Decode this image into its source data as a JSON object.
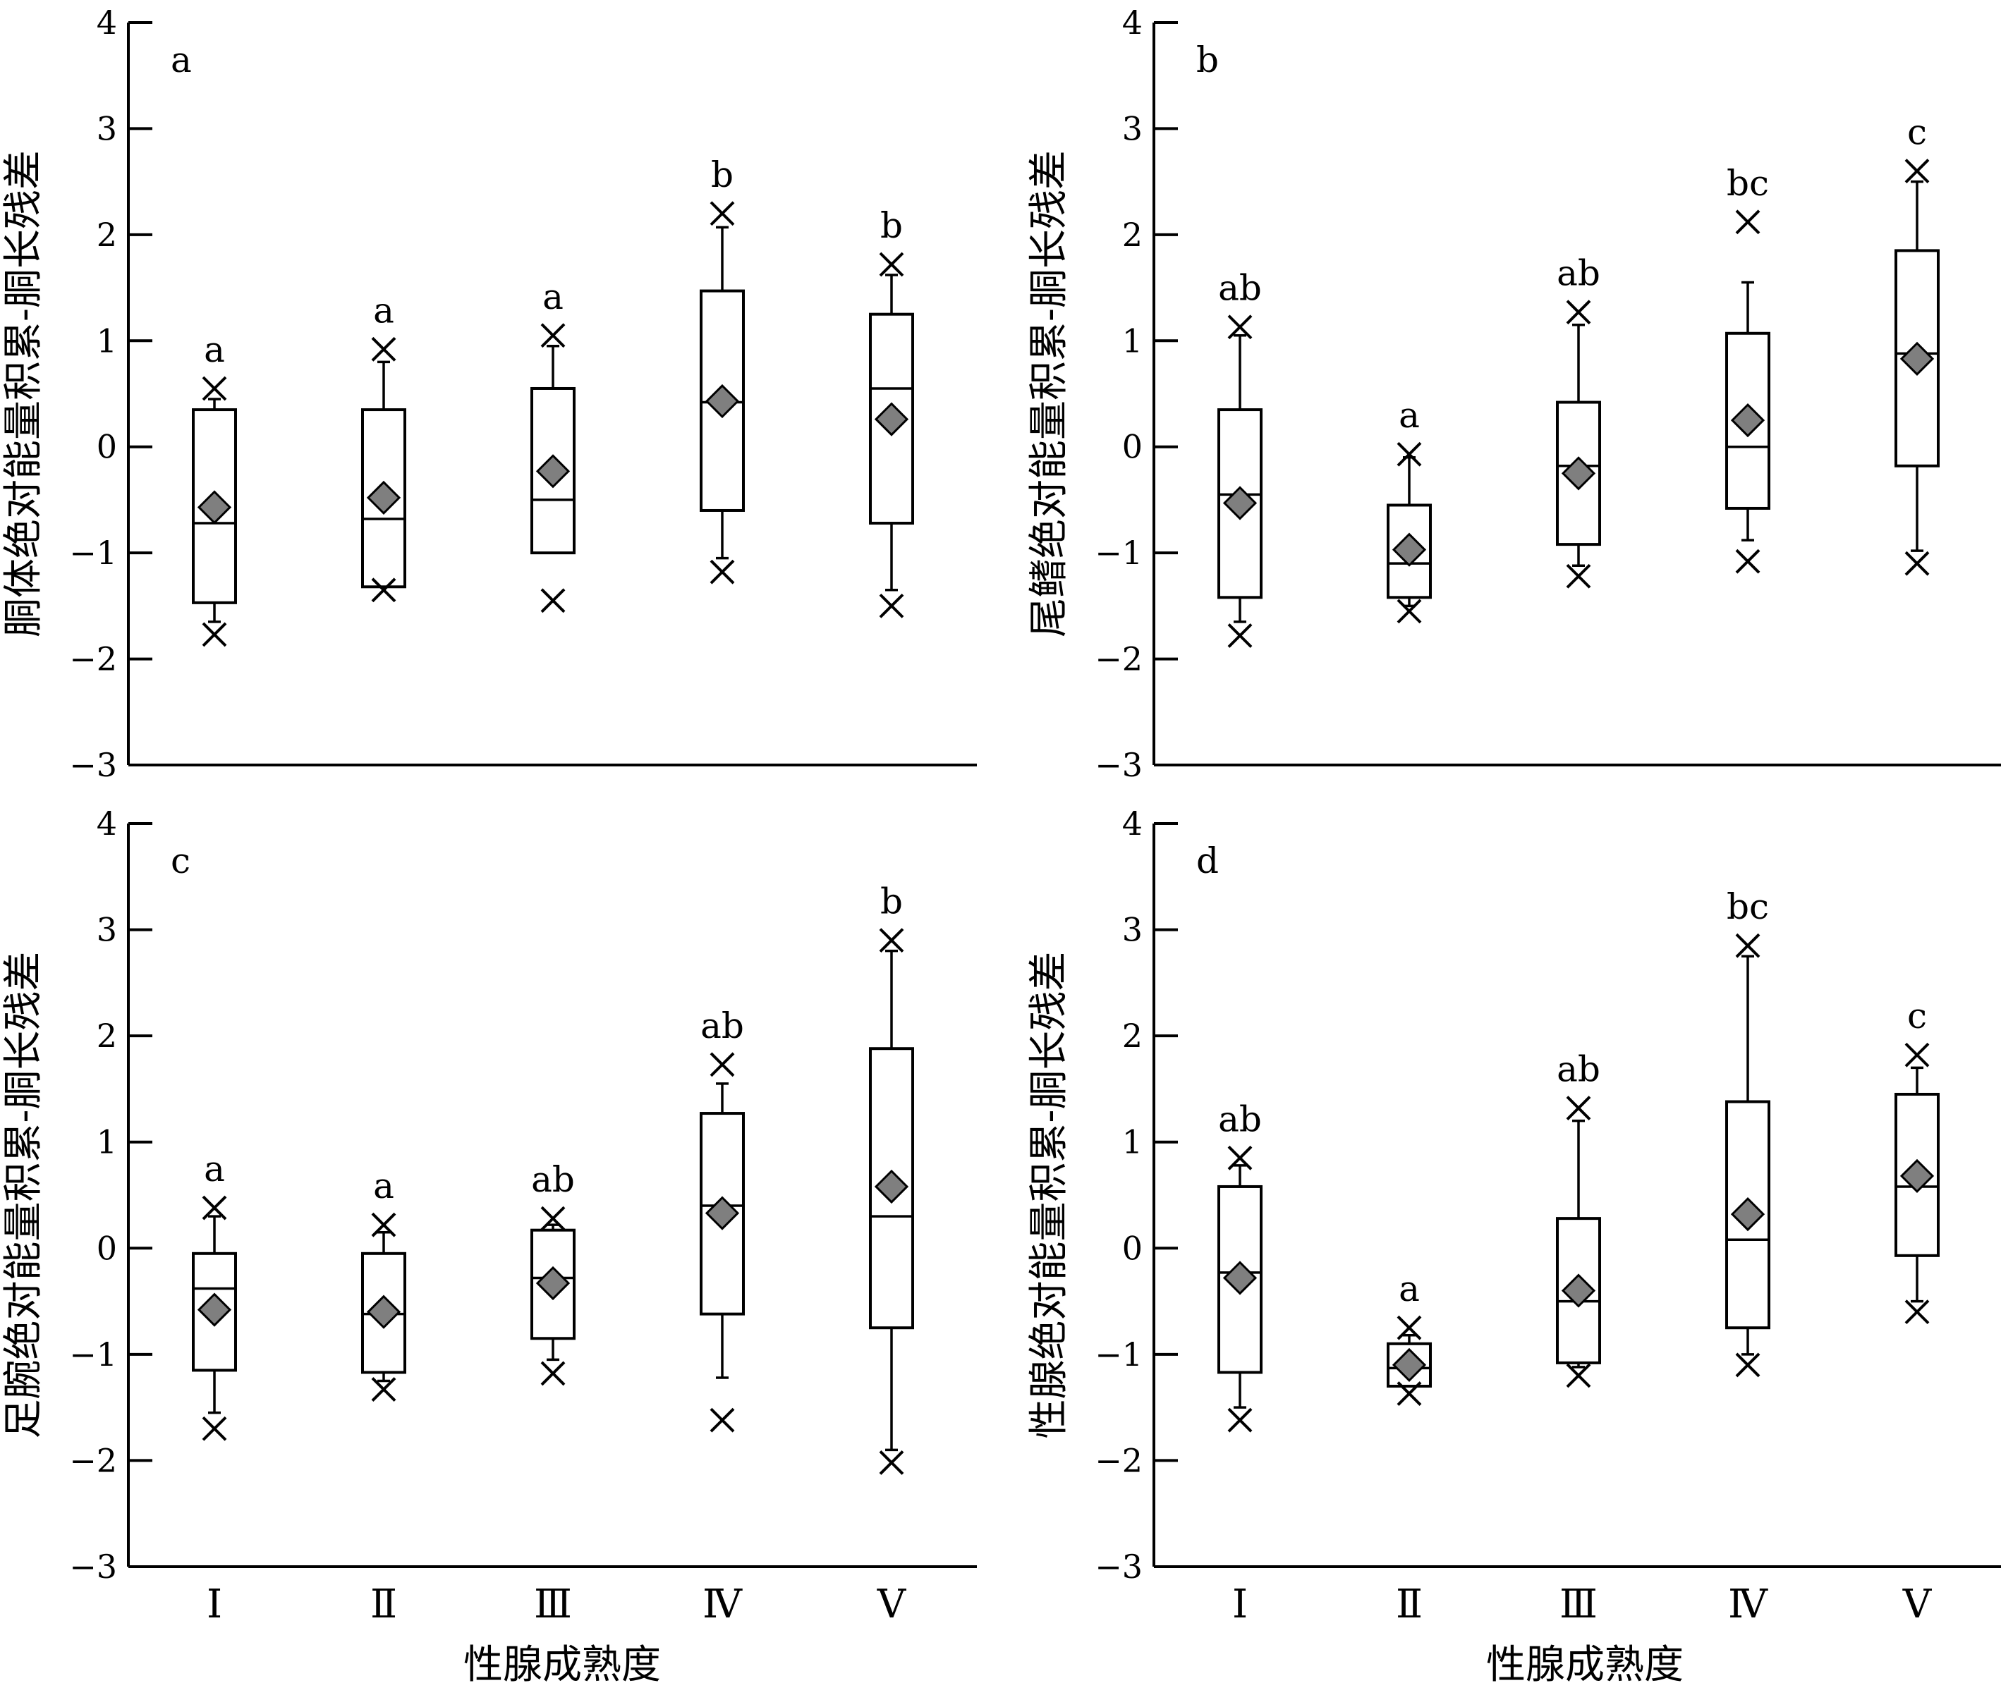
{
  "figure": {
    "x_title": "性腺成熟度",
    "categories": [
      "Ⅰ",
      "Ⅱ",
      "Ⅲ",
      "Ⅳ",
      "Ⅴ"
    ],
    "y_ticks": [
      4,
      3,
      2,
      1,
      0,
      -1,
      -2,
      -3
    ],
    "y_tick_labels": [
      "4",
      "3",
      "2",
      "1",
      "0",
      "−1",
      "−2",
      "−3"
    ],
    "ylim": [
      -3,
      4
    ]
  },
  "chart_data": [
    {
      "type": "box",
      "panel": "a",
      "ylabel": "胴体绝对能量积累-胴长残差",
      "ylim": [
        -3,
        4
      ],
      "categories": [
        "Ⅰ",
        "Ⅱ",
        "Ⅲ",
        "Ⅳ",
        "Ⅴ"
      ],
      "show_x_axis_labels": false,
      "boxes": [
        {
          "category": "Ⅰ",
          "q1": -1.47,
          "median": -0.72,
          "q3": 0.35,
          "whisker_low": -1.65,
          "whisker_high": 0.45,
          "mean": -0.57,
          "min": -1.77,
          "max": 0.55,
          "sig": "a"
        },
        {
          "category": "Ⅱ",
          "q1": -1.32,
          "median": -0.68,
          "q3": 0.35,
          "whisker_low": -1.32,
          "whisker_high": 0.8,
          "mean": -0.48,
          "min": -1.35,
          "max": 0.92,
          "sig": "a"
        },
        {
          "category": "Ⅲ",
          "q1": -1.0,
          "median": -0.5,
          "q3": 0.55,
          "whisker_low": -1.0,
          "whisker_high": 0.95,
          "mean": -0.23,
          "min": -1.45,
          "max": 1.05,
          "sig": "a"
        },
        {
          "category": "Ⅳ",
          "q1": -0.6,
          "median": 0.42,
          "q3": 1.47,
          "whisker_low": -1.05,
          "whisker_high": 2.07,
          "mean": 0.43,
          "min": -1.18,
          "max": 2.2,
          "sig": "b"
        },
        {
          "category": "Ⅴ",
          "q1": -0.72,
          "median": 0.55,
          "q3": 1.25,
          "whisker_low": -1.35,
          "whisker_high": 1.62,
          "mean": 0.26,
          "min": -1.5,
          "max": 1.72,
          "sig": "b"
        }
      ]
    },
    {
      "type": "box",
      "panel": "b",
      "ylabel": "尾鳍绝对能量积累-胴长残差",
      "ylim": [
        -3,
        4
      ],
      "categories": [
        "Ⅰ",
        "Ⅱ",
        "Ⅲ",
        "Ⅳ",
        "Ⅴ"
      ],
      "show_x_axis_labels": false,
      "boxes": [
        {
          "category": "Ⅰ",
          "q1": -1.42,
          "median": -0.45,
          "q3": 0.35,
          "whisker_low": -1.65,
          "whisker_high": 1.05,
          "mean": -0.53,
          "min": -1.78,
          "max": 1.13,
          "sig": "ab"
        },
        {
          "category": "Ⅱ",
          "q1": -1.42,
          "median": -1.1,
          "q3": -0.55,
          "whisker_low": -1.5,
          "whisker_high": -0.1,
          "mean": -0.97,
          "min": -1.55,
          "max": -0.07,
          "sig": "a"
        },
        {
          "category": "Ⅲ",
          "q1": -0.92,
          "median": -0.18,
          "q3": 0.42,
          "whisker_low": -1.12,
          "whisker_high": 1.15,
          "mean": -0.25,
          "min": -1.22,
          "max": 1.27,
          "sig": "ab"
        },
        {
          "category": "Ⅳ",
          "q1": -0.58,
          "median": 0.0,
          "q3": 1.07,
          "whisker_low": -0.88,
          "whisker_high": 1.55,
          "mean": 0.25,
          "min": -1.08,
          "max": 2.12,
          "sig": "bc"
        },
        {
          "category": "Ⅴ",
          "q1": -0.18,
          "median": 0.88,
          "q3": 1.85,
          "whisker_low": -0.98,
          "whisker_high": 2.5,
          "mean": 0.83,
          "min": -1.1,
          "max": 2.6,
          "sig": "c"
        }
      ]
    },
    {
      "type": "box",
      "panel": "c",
      "ylabel": "足腕绝对能量积累-胴长残差",
      "ylim": [
        -3,
        4
      ],
      "categories": [
        "Ⅰ",
        "Ⅱ",
        "Ⅲ",
        "Ⅳ",
        "Ⅴ"
      ],
      "show_x_axis_labels": true,
      "boxes": [
        {
          "category": "Ⅰ",
          "q1": -1.15,
          "median": -0.38,
          "q3": -0.05,
          "whisker_low": -1.55,
          "whisker_high": 0.3,
          "mean": -0.58,
          "min": -1.7,
          "max": 0.38,
          "sig": "a"
        },
        {
          "category": "Ⅱ",
          "q1": -1.17,
          "median": -0.62,
          "q3": -0.05,
          "whisker_low": -1.25,
          "whisker_high": 0.15,
          "mean": -0.6,
          "min": -1.33,
          "max": 0.22,
          "sig": "a"
        },
        {
          "category": "Ⅲ",
          "q1": -0.85,
          "median": -0.28,
          "q3": 0.17,
          "whisker_low": -1.05,
          "whisker_high": 0.22,
          "mean": -0.33,
          "min": -1.18,
          "max": 0.28,
          "sig": "ab"
        },
        {
          "category": "Ⅳ",
          "q1": -0.62,
          "median": 0.4,
          "q3": 1.27,
          "whisker_low": -1.22,
          "whisker_high": 1.55,
          "mean": 0.33,
          "min": -1.62,
          "max": 1.73,
          "sig": "ab"
        },
        {
          "category": "Ⅴ",
          "q1": -0.75,
          "median": 0.3,
          "q3": 1.88,
          "whisker_low": -1.9,
          "whisker_high": 2.8,
          "mean": 0.58,
          "min": -2.02,
          "max": 2.9,
          "sig": "b"
        }
      ]
    },
    {
      "type": "box",
      "panel": "d",
      "ylabel": "性腺绝对能量积累-胴长残差",
      "ylim": [
        -3,
        4
      ],
      "categories": [
        "Ⅰ",
        "Ⅱ",
        "Ⅲ",
        "Ⅳ",
        "Ⅴ"
      ],
      "show_x_axis_labels": true,
      "boxes": [
        {
          "category": "Ⅰ",
          "q1": -1.17,
          "median": -0.23,
          "q3": 0.58,
          "whisker_low": -1.5,
          "whisker_high": 0.78,
          "mean": -0.28,
          "min": -1.62,
          "max": 0.85,
          "sig": "ab"
        },
        {
          "category": "Ⅱ",
          "q1": -1.3,
          "median": -1.13,
          "q3": -0.9,
          "whisker_low": -1.3,
          "whisker_high": -0.82,
          "mean": -1.1,
          "min": -1.37,
          "max": -0.75,
          "sig": "a"
        },
        {
          "category": "Ⅲ",
          "q1": -1.08,
          "median": -0.5,
          "q3": 0.28,
          "whisker_low": -1.12,
          "whisker_high": 1.2,
          "mean": -0.4,
          "min": -1.2,
          "max": 1.32,
          "sig": "ab"
        },
        {
          "category": "Ⅳ",
          "q1": -0.75,
          "median": 0.08,
          "q3": 1.38,
          "whisker_low": -1.0,
          "whisker_high": 2.75,
          "mean": 0.32,
          "min": -1.1,
          "max": 2.85,
          "sig": "bc"
        },
        {
          "category": "Ⅴ",
          "q1": -0.07,
          "median": 0.58,
          "q3": 1.45,
          "whisker_low": -0.5,
          "whisker_high": 1.7,
          "mean": 0.68,
          "min": -0.6,
          "max": 1.82,
          "sig": "c"
        }
      ]
    }
  ]
}
